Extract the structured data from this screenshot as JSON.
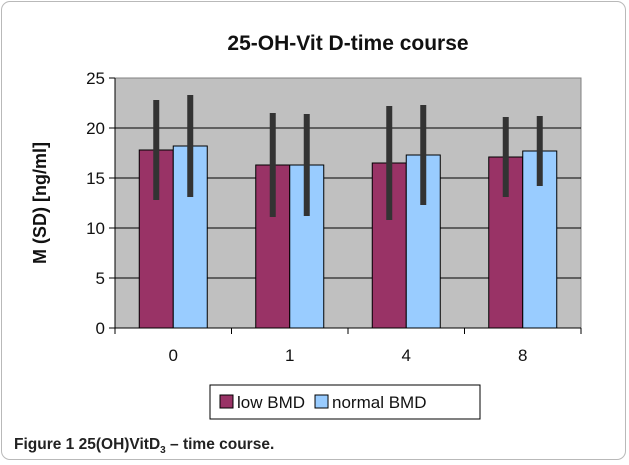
{
  "chart_data": {
    "type": "bar",
    "title": "25-OH-Vit D-time course",
    "ylabel": "M (SD) [ng/ml]",
    "xlabel": "",
    "categories": [
      "0",
      "1",
      "4",
      "8"
    ],
    "ylim": [
      0,
      25
    ],
    "yticks": [
      "0",
      "5",
      "10",
      "15",
      "20",
      "25"
    ],
    "grid": true,
    "legend_position": "bottom",
    "series": [
      {
        "name": "low BMD",
        "values": [
          17.8,
          16.3,
          16.5,
          17.1
        ],
        "error": [
          5.0,
          5.2,
          5.7,
          4.0
        ],
        "color": "#993366"
      },
      {
        "name": "normal BMD",
        "values": [
          18.2,
          16.3,
          17.3,
          17.7
        ],
        "error": [
          5.1,
          5.1,
          5.0,
          3.5
        ],
        "color": "#99ccff"
      }
    ],
    "plot_background": "#c0c0c0",
    "errorbar_color": "#333333"
  },
  "caption": {
    "label": "Figure 1",
    "text_prefix": "25(OH)VitD",
    "text_sub": "3",
    "text_suffix": " – time course."
  }
}
